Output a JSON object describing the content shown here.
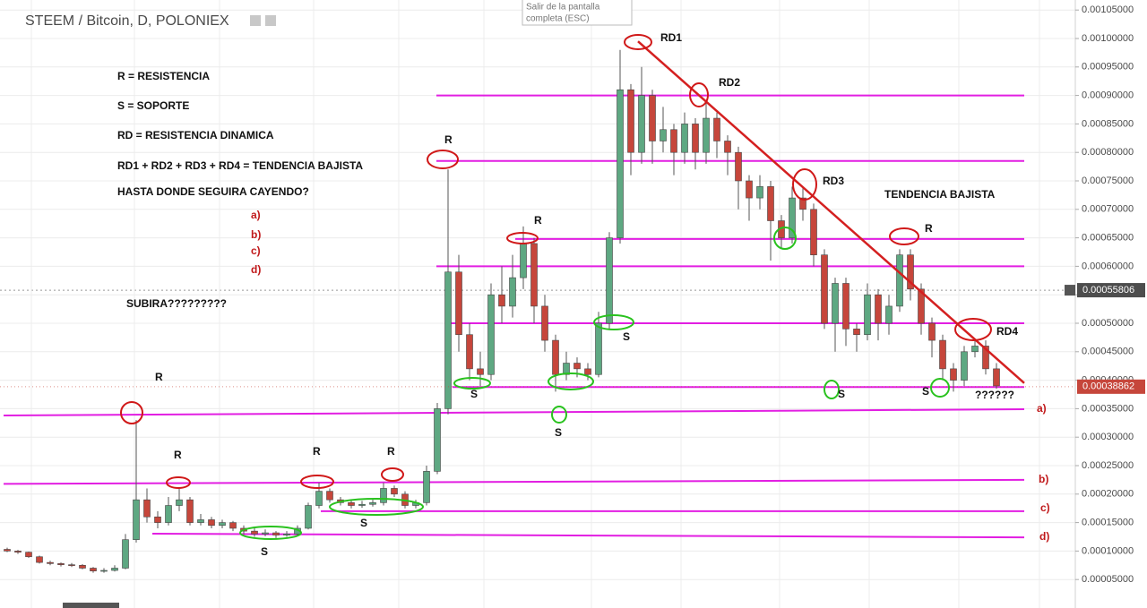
{
  "header": {
    "title": "STEEM / Bitcoin, D, POLONIEX",
    "tooltip": [
      "Salir de la pantalla",
      "completa (ESC)"
    ]
  },
  "chart_data": {
    "type": "candlestick",
    "ohlc": [
      [
        0.000103,
        0.000106,
        9.8e-05,
        0.0001
      ],
      [
        0.0001,
        0.000102,
        9.5e-05,
        9.8e-05
      ],
      [
        9.8e-05,
        9.9e-05,
        8.8e-05,
        9e-05
      ],
      [
        9e-05,
        9.2e-05,
        7.8e-05,
        8e-05
      ],
      [
        8e-05,
        8.3e-05,
        7.5e-05,
        7.8e-05
      ],
      [
        7.8e-05,
        8e-05,
        7.3e-05,
        7.6e-05
      ],
      [
        7.6e-05,
        7.9e-05,
        7.2e-05,
        7.5e-05
      ],
      [
        7.5e-05,
        7.7e-05,
        6.8e-05,
        7e-05
      ],
      [
        7e-05,
        7.2e-05,
        6.2e-05,
        6.5e-05
      ],
      [
        6.5e-05,
        7e-05,
        6.2e-05,
        6.6e-05
      ],
      [
        6.6e-05,
        7.5e-05,
        6.4e-05,
        7e-05
      ],
      [
        7e-05,
        0.00013,
        6.8e-05,
        0.00012
      ],
      [
        0.00012,
        0.00033,
        0.000115,
        0.00019
      ],
      [
        0.00019,
        0.00021,
        0.00015,
        0.00016
      ],
      [
        0.00016,
        0.00017,
        0.00014,
        0.00015
      ],
      [
        0.00015,
        0.000195,
        0.000145,
        0.00018
      ],
      [
        0.00018,
        0.00021,
        0.00017,
        0.00019
      ],
      [
        0.00019,
        0.000195,
        0.000145,
        0.00015
      ],
      [
        0.00015,
        0.000165,
        0.000145,
        0.000155
      ],
      [
        0.000155,
        0.00016,
        0.00014,
        0.000145
      ],
      [
        0.000145,
        0.000155,
        0.00014,
        0.00015
      ],
      [
        0.00015,
        0.000153,
        0.000135,
        0.00014
      ],
      [
        0.00014,
        0.000145,
        0.00013,
        0.000135
      ],
      [
        0.000135,
        0.00014,
        0.000125,
        0.00013
      ],
      [
        0.00013,
        0.000138,
        0.000126,
        0.000132
      ],
      [
        0.000132,
        0.000135,
        0.000123,
        0.000128
      ],
      [
        0.000128,
        0.000135,
        0.000125,
        0.00013
      ],
      [
        0.00013,
        0.000145,
        0.000128,
        0.00014
      ],
      [
        0.00014,
        0.000185,
        0.000138,
        0.00018
      ],
      [
        0.00018,
        0.00022,
        0.000175,
        0.000205
      ],
      [
        0.000205,
        0.00021,
        0.000185,
        0.00019
      ],
      [
        0.00019,
        0.000195,
        0.00018,
        0.000185
      ],
      [
        0.000185,
        0.00019,
        0.000175,
        0.00018
      ],
      [
        0.00018,
        0.000188,
        0.000176,
        0.000182
      ],
      [
        0.000182,
        0.00019,
        0.000178,
        0.000185
      ],
      [
        0.000185,
        0.00022,
        0.00018,
        0.00021
      ],
      [
        0.00021,
        0.000215,
        0.000195,
        0.0002
      ],
      [
        0.0002,
        0.000205,
        0.000175,
        0.00018
      ],
      [
        0.00018,
        0.00019,
        0.000175,
        0.000185
      ],
      [
        0.000185,
        0.00025,
        0.00018,
        0.00024
      ],
      [
        0.00024,
        0.00036,
        0.000235,
        0.00035
      ],
      [
        0.00035,
        0.00077,
        0.00034,
        0.00059
      ],
      [
        0.00059,
        0.00062,
        0.00045,
        0.00048
      ],
      [
        0.00048,
        0.0005,
        0.0004,
        0.00042
      ],
      [
        0.00042,
        0.00045,
        0.00039,
        0.00041
      ],
      [
        0.00041,
        0.00057,
        0.0004,
        0.00055
      ],
      [
        0.00055,
        0.0006,
        0.0005,
        0.00053
      ],
      [
        0.00053,
        0.00062,
        0.00051,
        0.00058
      ],
      [
        0.00058,
        0.00067,
        0.00056,
        0.00064
      ],
      [
        0.00064,
        0.00065,
        0.0005,
        0.00053
      ],
      [
        0.00053,
        0.00055,
        0.00045,
        0.00047
      ],
      [
        0.00047,
        0.00048,
        0.00038,
        0.00041
      ],
      [
        0.00041,
        0.00045,
        0.0004,
        0.00043
      ],
      [
        0.00043,
        0.00044,
        0.000405,
        0.00042
      ],
      [
        0.00042,
        0.00043,
        0.0004,
        0.00041
      ],
      [
        0.00041,
        0.00052,
        0.000405,
        0.0005
      ],
      [
        0.0005,
        0.00066,
        0.00049,
        0.00065
      ],
      [
        0.00065,
        0.00098,
        0.00064,
        0.00091
      ],
      [
        0.00091,
        0.00092,
        0.00076,
        0.0008
      ],
      [
        0.0008,
        0.00095,
        0.00078,
        0.0009
      ],
      [
        0.0009,
        0.00091,
        0.00078,
        0.00082
      ],
      [
        0.00082,
        0.00088,
        0.0008,
        0.00084
      ],
      [
        0.00084,
        0.00085,
        0.00076,
        0.0008
      ],
      [
        0.0008,
        0.00087,
        0.00078,
        0.00085
      ],
      [
        0.00085,
        0.00086,
        0.00077,
        0.0008
      ],
      [
        0.0008,
        0.00089,
        0.00078,
        0.00086
      ],
      [
        0.00086,
        0.00087,
        0.00079,
        0.00082
      ],
      [
        0.00082,
        0.00083,
        0.00076,
        0.0008
      ],
      [
        0.0008,
        0.00081,
        0.0007,
        0.00075
      ],
      [
        0.00075,
        0.00076,
        0.00068,
        0.00072
      ],
      [
        0.00072,
        0.00076,
        0.0007,
        0.00074
      ],
      [
        0.00074,
        0.00075,
        0.00061,
        0.00068
      ],
      [
        0.00068,
        0.00069,
        0.00063,
        0.00065
      ],
      [
        0.00065,
        0.00074,
        0.00064,
        0.00072
      ],
      [
        0.00072,
        0.00074,
        0.00068,
        0.0007
      ],
      [
        0.0007,
        0.00071,
        0.0006,
        0.00062
      ],
      [
        0.00062,
        0.00063,
        0.00049,
        0.0005
      ],
      [
        0.0005,
        0.00058,
        0.00045,
        0.00057
      ],
      [
        0.00057,
        0.00058,
        0.00046,
        0.00049
      ],
      [
        0.00049,
        0.0005,
        0.00045,
        0.00048
      ],
      [
        0.00048,
        0.00057,
        0.00047,
        0.00055
      ],
      [
        0.00055,
        0.00056,
        0.00047,
        0.0005
      ],
      [
        0.0005,
        0.00055,
        0.00048,
        0.00053
      ],
      [
        0.00053,
        0.00063,
        0.00052,
        0.00062
      ],
      [
        0.00062,
        0.00063,
        0.00054,
        0.00056
      ],
      [
        0.00056,
        0.00057,
        0.00048,
        0.0005
      ],
      [
        0.0005,
        0.00051,
        0.00044,
        0.00047
      ],
      [
        0.00047,
        0.00048,
        0.0004,
        0.00042
      ],
      [
        0.00042,
        0.00043,
        0.00038,
        0.0004
      ],
      [
        0.0004,
        0.00046,
        0.00039,
        0.00045
      ],
      [
        0.00045,
        0.00047,
        0.00044,
        0.00046
      ],
      [
        0.00046,
        0.00047,
        0.00041,
        0.00042
      ],
      [
        0.00042,
        0.00043,
        0.000385,
        0.00039
      ]
    ],
    "up_color": "#5ea882",
    "down_color": "#c6463b",
    "ylim": [
      0,
      0.0010676
    ],
    "yticks": [
      {
        "value": 5e-05,
        "label": "0.00005000"
      },
      {
        "value": 0.0001,
        "label": "0.00010000"
      },
      {
        "value": 0.00015,
        "label": "0.00015000"
      },
      {
        "value": 0.0002,
        "label": "0.00020000"
      },
      {
        "value": 0.00025,
        "label": "0.00025000"
      },
      {
        "value": 0.0003,
        "label": "0.00030000"
      },
      {
        "value": 0.00035,
        "label": "0.00035000"
      },
      {
        "value": 0.0004,
        "label": "0.00040000"
      },
      {
        "value": 0.00045,
        "label": "0.00045000"
      },
      {
        "value": 0.0005,
        "label": "0.00050000"
      },
      {
        "value": 0.00055,
        "label": "0.00055000"
      },
      {
        "value": 0.0006,
        "label": "0.00060000"
      },
      {
        "value": 0.00065,
        "label": "0.00065000"
      },
      {
        "value": 0.0007,
        "label": "0.00070000"
      },
      {
        "value": 0.00075,
        "label": "0.00075000"
      },
      {
        "value": 0.0008,
        "label": "0.00080000"
      },
      {
        "value": 0.00085,
        "label": "0.00085000"
      },
      {
        "value": 0.0009,
        "label": "0.00090000"
      },
      {
        "value": 0.00095,
        "label": "0.00095000"
      },
      {
        "value": 0.001,
        "label": "0.00100000"
      },
      {
        "value": 0.00105,
        "label": "0.00105000"
      }
    ],
    "grid": true,
    "crosshair_price": 0.00055806,
    "last_price": 0.00038862,
    "level_color": "#e21ee2",
    "levels": [
      {
        "start": 0.0009,
        "end": 0.0009
      },
      {
        "start": 0.000785,
        "end": 0.000785
      },
      {
        "start": 0.000648,
        "end": 0.000648
      },
      {
        "start": 0.0006,
        "end": 0.0006
      },
      {
        "start": 0.0005,
        "end": 0.0005
      },
      {
        "start": 0.000388,
        "end": 0.000388
      },
      {
        "start": 0.000338,
        "end": 0.000349
      },
      {
        "start": 0.000218,
        "end": 0.000225
      },
      {
        "start": 0.00017,
        "end": 0.00017
      },
      {
        "start": 0.0001305,
        "end": 0.000124
      }
    ],
    "trend": {
      "start": 0.000995,
      "end": 0.000395,
      "color": "#d42020"
    },
    "legend_notes": [
      "R = RESISTENCIA",
      "S = SOPORTE",
      "RD = RESISTENCIA DINAMICA",
      "RD1 + RD2 + RD3 + RD4 = TENDENCIA BAJISTA",
      "HASTA DONDE SEGUIRA CAYENDO?"
    ],
    "option_labels": [
      "a)",
      "b)",
      "c)",
      "d)"
    ],
    "level_tags": [
      "a)",
      "b)",
      "c)",
      "d)"
    ],
    "annotations": [
      "RD1",
      "RD2",
      "RD3",
      "RD4",
      "R",
      "R",
      "R",
      "R",
      "R",
      "R",
      "R",
      "S",
      "S",
      "S",
      "S",
      "S",
      "S",
      "S",
      "TENDENCIA BAJISTA",
      "??????",
      "SUBIRA?????????"
    ]
  }
}
